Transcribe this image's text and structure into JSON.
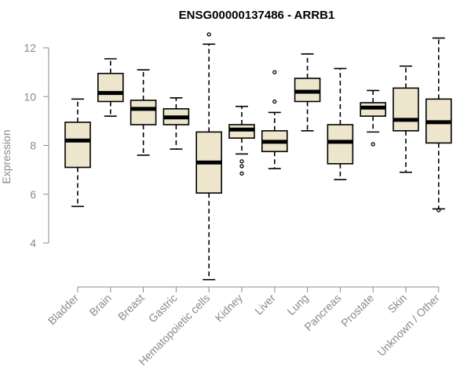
{
  "chart_data": {
    "type": "boxplot",
    "title": "ENSG00000137486 - ARRB1",
    "ylabel": "Expression",
    "xlabel": "",
    "ylim": [
      2.3,
      12.8
    ],
    "yticks": [
      4,
      6,
      8,
      10,
      12
    ],
    "box_fill": "#ede6cc",
    "categories": [
      "Bladder",
      "Brain",
      "Breast",
      "Gastric",
      "Hematopoietic cells",
      "Kidney",
      "Liver",
      "Lung",
      "Pancreas",
      "Prostate",
      "Skin",
      "Unknown / Other"
    ],
    "boxes": [
      {
        "whisker_low": 5.5,
        "q1": 7.1,
        "median": 8.2,
        "q3": 8.95,
        "whisker_high": 9.9,
        "outliers": []
      },
      {
        "whisker_low": 9.2,
        "q1": 9.8,
        "median": 10.15,
        "q3": 10.95,
        "whisker_high": 11.55,
        "outliers": []
      },
      {
        "whisker_low": 7.6,
        "q1": 8.85,
        "median": 9.5,
        "q3": 9.85,
        "whisker_high": 11.1,
        "outliers": []
      },
      {
        "whisker_low": 7.85,
        "q1": 8.85,
        "median": 9.15,
        "q3": 9.5,
        "whisker_high": 9.95,
        "outliers": []
      },
      {
        "whisker_low": 2.5,
        "q1": 6.05,
        "median": 7.3,
        "q3": 8.55,
        "whisker_high": 12.15,
        "outliers": [
          12.55
        ]
      },
      {
        "whisker_low": 7.65,
        "q1": 8.3,
        "median": 8.65,
        "q3": 8.85,
        "whisker_high": 9.6,
        "outliers": [
          7.35,
          7.15,
          6.85
        ]
      },
      {
        "whisker_low": 7.05,
        "q1": 7.75,
        "median": 8.15,
        "q3": 8.6,
        "whisker_high": 9.35,
        "outliers": [
          11.0,
          9.8
        ]
      },
      {
        "whisker_low": 8.6,
        "q1": 9.8,
        "median": 10.2,
        "q3": 10.75,
        "whisker_high": 11.75,
        "outliers": []
      },
      {
        "whisker_low": 6.6,
        "q1": 7.25,
        "median": 8.15,
        "q3": 8.85,
        "whisker_high": 11.15,
        "outliers": []
      },
      {
        "whisker_low": 8.55,
        "q1": 9.2,
        "median": 9.55,
        "q3": 9.75,
        "whisker_high": 10.25,
        "outliers": [
          8.05
        ]
      },
      {
        "whisker_low": 6.9,
        "q1": 8.6,
        "median": 9.05,
        "q3": 10.35,
        "whisker_high": 11.25,
        "outliers": []
      },
      {
        "whisker_low": 5.4,
        "q1": 8.1,
        "median": 8.95,
        "q3": 9.9,
        "whisker_high": 12.4,
        "outliers": [
          5.35
        ]
      }
    ]
  }
}
